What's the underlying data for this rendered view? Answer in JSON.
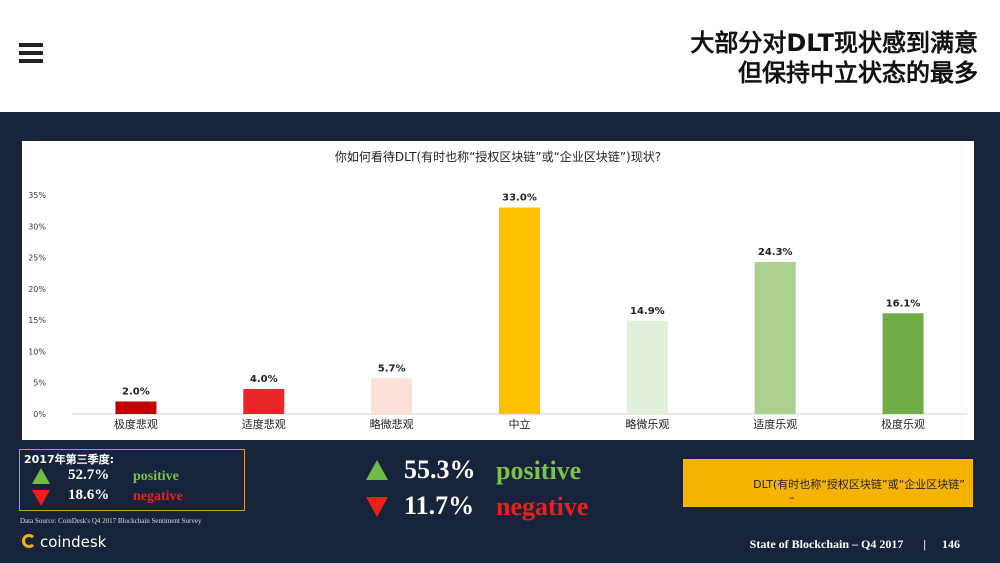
{
  "header": {
    "title_line1": "大部分对DLT现状感到满意",
    "title_line2": "但保持中立状态的最多"
  },
  "chart_data": {
    "type": "bar",
    "title": "你如何看待DLT(有时也称“授权区块链”或“企业区块链”)现状?",
    "categories": [
      "极度悲观",
      "适度悲观",
      "略微悲观",
      "中立",
      "略微乐观",
      "适度乐观",
      "极度乐观"
    ],
    "values": [
      2.0,
      4.0,
      5.7,
      33.0,
      14.9,
      24.3,
      16.1
    ],
    "value_labels": [
      "2.0%",
      "4.0%",
      "5.7%",
      "33.0%",
      "14.9%",
      "24.3%",
      "16.1%"
    ],
    "colors": [
      "#c00000",
      "#e8262a",
      "#fbe1d6",
      "#ffc000",
      "#e2efda",
      "#a9d08e",
      "#70ad47"
    ],
    "ylim": [
      0,
      35
    ],
    "yticks": [
      "0%",
      "5%",
      "10%",
      "15%",
      "20%",
      "25%",
      "30%",
      "35%"
    ],
    "ytick_values": [
      0,
      5,
      10,
      15,
      20,
      25,
      30,
      35
    ],
    "xlabel": "",
    "ylabel": "",
    "grid": false
  },
  "legend_2017q3": {
    "heading": "2017年第三季度:",
    "positive_value": "52.7%",
    "positive_label": "positive",
    "negative_value": "18.6%",
    "negative_label": "negative"
  },
  "summary": {
    "positive_value": "55.3%",
    "positive_label": "positive",
    "negative_value": "11.7%",
    "negative_label": "negative"
  },
  "note": {
    "text": "DLT(有时也称“授权区块链”或“企业区块链”",
    "trailing": "–"
  },
  "source": "Data Source: CoinDesk's Q4 2017 Blockchain Sentiment Survey",
  "footer": {
    "report": "State of Blockchain – Q4 2017",
    "separator": "|",
    "page": "146"
  },
  "logo": "coindesk",
  "colors": {
    "background": "#17233a",
    "positive": "#7dc24a",
    "negative": "#e8211a",
    "note_box": "#f6b300"
  }
}
